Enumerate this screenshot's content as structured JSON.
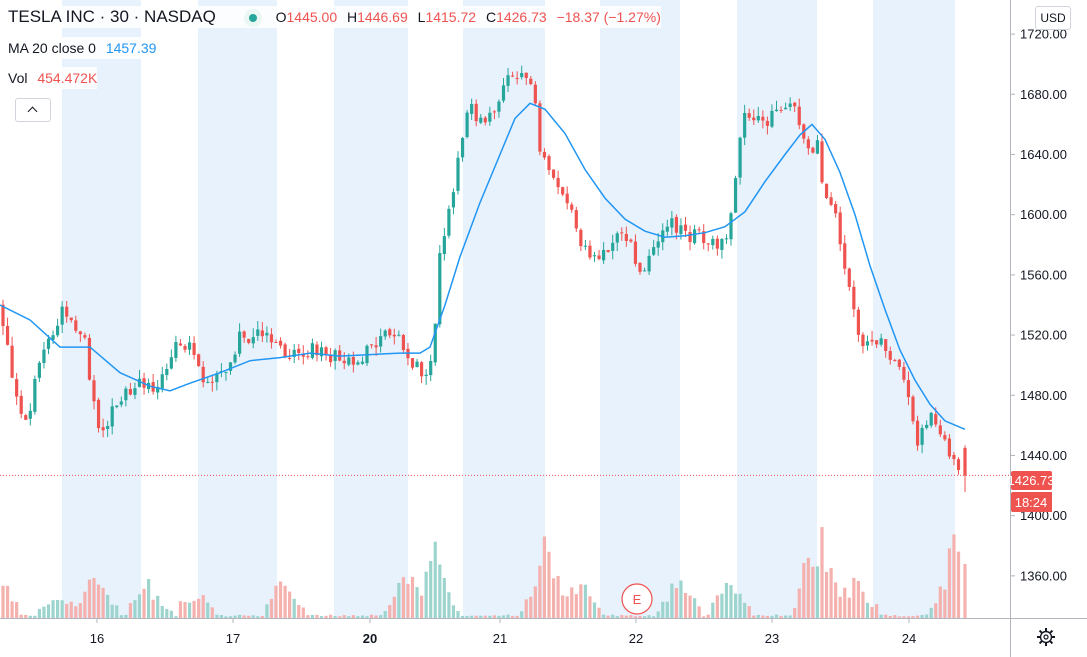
{
  "header": {
    "symbol": "TESLA INC · 30 · NASDAQ",
    "ohlc": {
      "open_label": "O",
      "open": "1445.00",
      "high_label": "H",
      "high": "1446.69",
      "low_label": "L",
      "low": "1415.72",
      "close_label": "C",
      "close": "1426.73",
      "change": "−18.37 (−1.27%)"
    },
    "ma_label": "MA 20 close 0",
    "ma_value": "1457.39",
    "vol_label": "Vol",
    "vol_value": "454.472K"
  },
  "currency_button": "USD",
  "price_label": "1426.73",
  "countdown_label": "18:24",
  "earnings_marker": "E",
  "colors": {
    "up": "#26a69a",
    "down": "#ef5350",
    "ma": "#2196f3",
    "session_band": "#e8f2fd",
    "vol_up": "#9dd4cd",
    "vol_down": "#f4b1ae"
  },
  "icons": [
    "chevron-up-icon",
    "gear-icon",
    "status-dot-icon"
  ],
  "chart_data": {
    "type": "candlestick",
    "timeframe": "30",
    "x_tick_labels": [
      "16",
      "17",
      "20",
      "21",
      "22",
      "23",
      "24"
    ],
    "y_tick_labels": [
      "1720.00",
      "1680.00",
      "1640.00",
      "1600.00",
      "1560.00",
      "1520.00",
      "1480.00",
      "1440.00",
      "1400.00",
      "1360.00"
    ],
    "ylim": [
      1332,
      1736
    ],
    "last_price": 1426.73,
    "ma_period": 20,
    "ma_last": 1457.39,
    "close_path": [
      [
        0,
        1540
      ],
      [
        10,
        1500
      ],
      [
        20,
        1475
      ],
      [
        28,
        1455
      ],
      [
        35,
        1490
      ],
      [
        45,
        1515
      ],
      [
        55,
        1520
      ],
      [
        60,
        1540
      ],
      [
        70,
        1530
      ],
      [
        85,
        1515
      ],
      [
        97,
        1462
      ],
      [
        105,
        1455
      ],
      [
        112,
        1470
      ],
      [
        120,
        1478
      ],
      [
        130,
        1482
      ],
      [
        140,
        1492
      ],
      [
        150,
        1483
      ],
      [
        160,
        1492
      ],
      [
        170,
        1505
      ],
      [
        175,
        1520
      ],
      [
        182,
        1516
      ],
      [
        190,
        1510
      ],
      [
        200,
        1495
      ],
      [
        208,
        1485
      ],
      [
        215,
        1490
      ],
      [
        222,
        1492
      ],
      [
        230,
        1497
      ],
      [
        238,
        1520
      ],
      [
        248,
        1517
      ],
      [
        260,
        1520
      ],
      [
        270,
        1518
      ],
      [
        280,
        1518
      ],
      [
        288,
        1504
      ],
      [
        296,
        1506
      ],
      [
        304,
        1508
      ],
      [
        312,
        1510
      ],
      [
        320,
        1512
      ],
      [
        330,
        1506
      ],
      [
        340,
        1505
      ],
      [
        350,
        1504
      ],
      [
        360,
        1506
      ],
      [
        370,
        1510
      ],
      [
        380,
        1518
      ],
      [
        390,
        1522
      ],
      [
        400,
        1518
      ],
      [
        410,
        1500
      ],
      [
        420,
        1497
      ],
      [
        430,
        1497
      ],
      [
        435,
        1530
      ],
      [
        440,
        1572
      ],
      [
        447,
        1597
      ],
      [
        455,
        1625
      ],
      [
        465,
        1660
      ],
      [
        472,
        1672
      ],
      [
        480,
        1662
      ],
      [
        490,
        1664
      ],
      [
        500,
        1682
      ],
      [
        510,
        1690
      ],
      [
        520,
        1692
      ],
      [
        530,
        1688
      ],
      [
        535,
        1677
      ],
      [
        540,
        1645
      ],
      [
        550,
        1625
      ],
      [
        560,
        1615
      ],
      [
        570,
        1605
      ],
      [
        580,
        1580
      ],
      [
        590,
        1575
      ],
      [
        600,
        1570
      ],
      [
        610,
        1578
      ],
      [
        620,
        1585
      ],
      [
        630,
        1583
      ],
      [
        640,
        1560
      ],
      [
        650,
        1572
      ],
      [
        660,
        1590
      ],
      [
        670,
        1594
      ],
      [
        680,
        1590
      ],
      [
        690,
        1585
      ],
      [
        700,
        1588
      ],
      [
        710,
        1583
      ],
      [
        720,
        1578
      ],
      [
        728,
        1583
      ],
      [
        735,
        1622
      ],
      [
        740,
        1652
      ],
      [
        747,
        1668
      ],
      [
        755,
        1665
      ],
      [
        765,
        1660
      ],
      [
        775,
        1668
      ],
      [
        785,
        1672
      ],
      [
        795,
        1668
      ],
      [
        805,
        1652
      ],
      [
        812,
        1640
      ],
      [
        818,
        1652
      ],
      [
        822,
        1625
      ],
      [
        830,
        1603
      ],
      [
        838,
        1593
      ],
      [
        846,
        1560
      ],
      [
        854,
        1532
      ],
      [
        862,
        1510
      ],
      [
        870,
        1519
      ],
      [
        878,
        1516
      ],
      [
        886,
        1513
      ],
      [
        895,
        1502
      ],
      [
        903,
        1488
      ],
      [
        910,
        1470
      ],
      [
        918,
        1450
      ],
      [
        925,
        1460
      ],
      [
        932,
        1465
      ],
      [
        940,
        1455
      ],
      [
        948,
        1442
      ],
      [
        955,
        1438
      ],
      [
        965,
        1426.73
      ]
    ],
    "ma_path": [
      [
        0,
        1540
      ],
      [
        30,
        1530
      ],
      [
        60,
        1512
      ],
      [
        90,
        1512
      ],
      [
        120,
        1495
      ],
      [
        150,
        1486
      ],
      [
        170,
        1483
      ],
      [
        190,
        1488
      ],
      [
        220,
        1495
      ],
      [
        250,
        1503
      ],
      [
        280,
        1505
      ],
      [
        310,
        1508
      ],
      [
        340,
        1506
      ],
      [
        370,
        1507
      ],
      [
        400,
        1508
      ],
      [
        420,
        1508
      ],
      [
        430,
        1512
      ],
      [
        445,
        1540
      ],
      [
        460,
        1572
      ],
      [
        480,
        1608
      ],
      [
        500,
        1640
      ],
      [
        515,
        1664
      ],
      [
        530,
        1674
      ],
      [
        545,
        1670
      ],
      [
        565,
        1654
      ],
      [
        585,
        1630
      ],
      [
        605,
        1611
      ],
      [
        625,
        1597
      ],
      [
        645,
        1589
      ],
      [
        665,
        1585
      ],
      [
        685,
        1586
      ],
      [
        705,
        1588
      ],
      [
        725,
        1592
      ],
      [
        745,
        1602
      ],
      [
        765,
        1622
      ],
      [
        785,
        1640
      ],
      [
        800,
        1653
      ],
      [
        812,
        1660
      ],
      [
        825,
        1650
      ],
      [
        840,
        1628
      ],
      [
        855,
        1600
      ],
      [
        870,
        1566
      ],
      [
        885,
        1537
      ],
      [
        900,
        1510
      ],
      [
        915,
        1490
      ],
      [
        930,
        1474
      ],
      [
        945,
        1463
      ],
      [
        965,
        1457.39
      ]
    ],
    "volume_bursts": [
      [
        0,
        0.25
      ],
      [
        58,
        0.2
      ],
      [
        97,
        0.3
      ],
      [
        148,
        0.25
      ],
      [
        195,
        0.2
      ],
      [
        282,
        0.25
      ],
      [
        410,
        0.35
      ],
      [
        435,
        0.45
      ],
      [
        547,
        0.6
      ],
      [
        577,
        0.3
      ],
      [
        680,
        0.3
      ],
      [
        730,
        0.25
      ],
      [
        818,
        0.65
      ],
      [
        856,
        0.3
      ],
      [
        955,
        0.55
      ]
    ],
    "session_bands": [
      [
        62,
        141
      ],
      [
        198,
        277
      ],
      [
        334,
        408
      ],
      [
        463,
        545
      ],
      [
        600,
        680
      ],
      [
        737,
        817
      ],
      [
        873,
        955
      ]
    ]
  }
}
